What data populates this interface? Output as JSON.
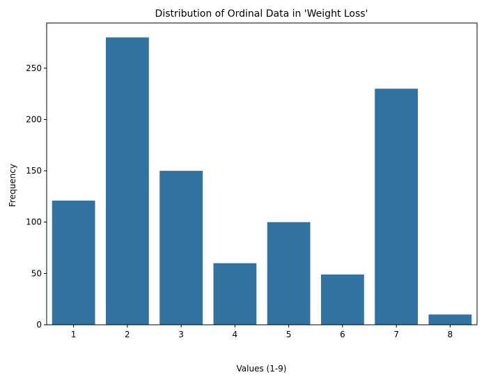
{
  "chart_data": {
    "type": "bar",
    "title": "Distribution of Ordinal Data in 'Weight Loss'",
    "xlabel": "Values (1-9)",
    "ylabel": "Frequency",
    "categories": [
      "1",
      "2",
      "3",
      "4",
      "5",
      "6",
      "7",
      "8"
    ],
    "values": [
      121,
      280,
      150,
      60,
      100,
      49,
      230,
      10
    ],
    "ylim": [
      0,
      294
    ],
    "yticks": [
      0,
      50,
      100,
      150,
      200,
      250
    ],
    "grid": false,
    "legend": "none",
    "bar_color": "#3274a1"
  }
}
